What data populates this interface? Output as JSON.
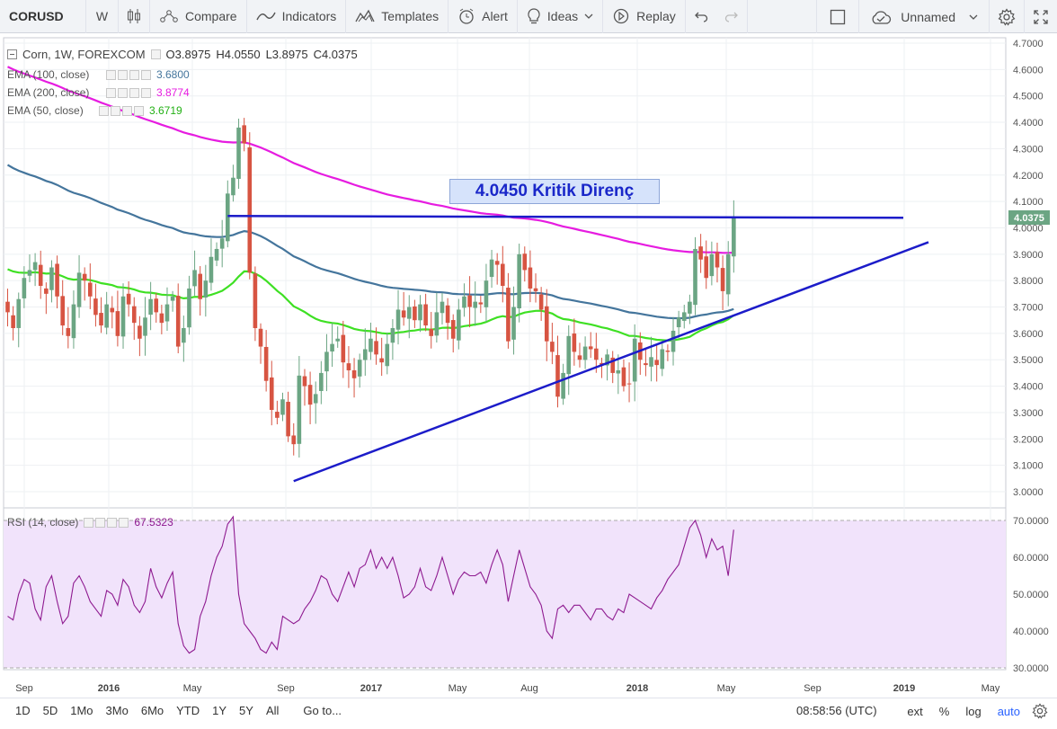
{
  "toolbar": {
    "symbol": "CORUSD",
    "interval": "W",
    "compare": "Compare",
    "indicators": "Indicators",
    "templates": "Templates",
    "alert": "Alert",
    "ideas": "Ideas",
    "replay": "Replay",
    "layout_name": "Unnamed"
  },
  "legend": {
    "title": "Corn, 1W, FOREXCOM",
    "open": "O3.8975",
    "high": "H4.0550",
    "low": "L3.8975",
    "close": "C4.0375",
    "ema100_label": "EMA (100, close)",
    "ema100_value": "3.6800",
    "ema200_label": "EMA (200, close)",
    "ema200_value": "3.8774",
    "ema50_label": "EMA (50, close)",
    "ema50_value": "3.6719",
    "rsi_label": "RSI (14, close)",
    "rsi_value": "67.5323"
  },
  "annotation": "4.0450 Kritik Direnç",
  "price_axis": [
    "4.7000",
    "4.6000",
    "4.5000",
    "4.4000",
    "4.3000",
    "4.2000",
    "4.1000",
    "4.0000",
    "3.9000",
    "3.8000",
    "3.7000",
    "3.6000",
    "3.5000",
    "3.4000",
    "3.3000",
    "3.2000",
    "3.1000",
    "3.0000"
  ],
  "last_price": "4.0375",
  "rsi_axis": [
    "70.0000",
    "60.0000",
    "50.0000",
    "40.0000",
    "30.0000"
  ],
  "time_axis": [
    {
      "label": "Sep",
      "bold": false
    },
    {
      "label": "2016",
      "bold": true
    },
    {
      "label": "May",
      "bold": false
    },
    {
      "label": "Sep",
      "bold": false
    },
    {
      "label": "2017",
      "bold": true
    },
    {
      "label": "May",
      "bold": false
    },
    {
      "label": "Aug",
      "bold": false
    },
    {
      "label": "2018",
      "bold": true
    },
    {
      "label": "May",
      "bold": false
    },
    {
      "label": "Sep",
      "bold": false
    },
    {
      "label": "2019",
      "bold": true
    },
    {
      "label": "May",
      "bold": false
    }
  ],
  "ranges": [
    "1D",
    "5D",
    "1Mo",
    "3Mo",
    "6Mo",
    "YTD",
    "1Y",
    "5Y",
    "All"
  ],
  "goto": "Go to...",
  "clock": "08:58:56 (UTC)",
  "bottom_right": {
    "ext": "ext",
    "pct": "%",
    "log": "log",
    "auto": "auto"
  },
  "colors": {
    "up": "#6ba583",
    "down": "#d75442",
    "ema50": "#3ee023",
    "ema100": "#44759c",
    "ema200": "#e61ce0",
    "trendline": "#1c1cc9",
    "rsi_line": "#8e1a90",
    "rsi_band": "#f1e3fb"
  },
  "chart_data": {
    "type": "candlestick",
    "interval": "1W",
    "ylim": [
      2.95,
      4.72
    ],
    "closes": [
      3.68,
      3.62,
      3.73,
      3.81,
      3.84,
      3.87,
      3.78,
      3.75,
      3.85,
      3.74,
      3.63,
      3.59,
      3.71,
      3.83,
      3.8,
      3.74,
      3.67,
      3.63,
      3.71,
      3.68,
      3.59,
      3.74,
      3.71,
      3.64,
      3.58,
      3.66,
      3.73,
      3.68,
      3.64,
      3.71,
      3.74,
      3.55,
      3.62,
      3.77,
      3.84,
      3.73,
      3.8,
      3.89,
      3.92,
      3.96,
      4.13,
      4.19,
      4.38,
      4.32,
      3.83,
      3.62,
      3.55,
      3.42,
      3.31,
      3.28,
      3.35,
      3.21,
      3.18,
      3.44,
      3.4,
      3.33,
      3.37,
      3.45,
      3.53,
      3.56,
      3.58,
      3.49,
      3.46,
      3.43,
      3.5,
      3.54,
      3.58,
      3.52,
      3.49,
      3.56,
      3.62,
      3.69,
      3.66,
      3.7,
      3.65,
      3.71,
      3.63,
      3.59,
      3.68,
      3.72,
      3.64,
      3.58,
      3.69,
      3.74,
      3.7,
      3.72,
      3.71,
      3.8,
      3.88,
      3.86,
      3.78,
      3.57,
      3.7,
      3.9,
      3.84,
      3.77,
      3.76,
      3.69,
      3.57,
      3.53,
      3.36,
      3.45,
      3.59,
      3.53,
      3.5,
      3.55,
      3.54,
      3.5,
      3.48,
      3.52,
      3.45,
      3.46,
      3.4,
      3.41,
      3.58,
      3.5,
      3.48,
      3.51,
      3.48,
      3.54,
      3.53,
      3.61,
      3.66,
      3.68,
      3.72,
      3.92,
      3.88,
      3.81,
      3.9,
      3.85,
      3.76,
      3.9,
      4.0375
    ],
    "horizontal_line": {
      "label": "4.0450 Kritik Direnç",
      "value": 4.045
    },
    "trendline_lows": [
      [
        52,
        3.04
      ],
      [
        131,
        3.66
      ]
    ],
    "rsi": [
      44,
      43,
      50,
      54,
      53,
      46,
      43,
      52,
      55,
      48,
      42,
      44,
      53,
      55,
      52,
      48,
      46,
      44,
      51,
      50,
      47,
      54,
      52,
      47,
      45,
      48,
      57,
      52,
      49,
      53,
      56,
      42,
      36,
      34,
      35,
      44,
      48,
      55,
      60,
      63,
      69,
      71,
      50,
      42,
      40,
      38,
      35,
      34,
      37,
      35,
      44,
      43,
      42,
      43,
      46,
      48,
      51,
      55,
      54,
      50,
      48,
      52,
      56,
      52,
      57,
      58,
      62,
      57,
      60,
      57,
      60,
      55,
      49,
      50,
      52,
      57,
      52,
      51,
      55,
      60,
      55,
      50,
      54,
      56,
      55,
      55,
      56,
      53,
      58,
      62,
      58,
      48,
      55,
      62,
      57,
      52,
      50,
      47,
      40,
      38,
      46,
      47,
      45,
      47,
      47,
      45,
      43,
      46,
      46,
      44,
      43,
      46,
      45,
      50,
      49,
      48,
      47,
      46,
      49,
      51,
      54,
      56,
      58,
      63,
      68,
      70,
      66,
      60,
      65,
      62,
      63,
      55,
      67.5
    ]
  }
}
